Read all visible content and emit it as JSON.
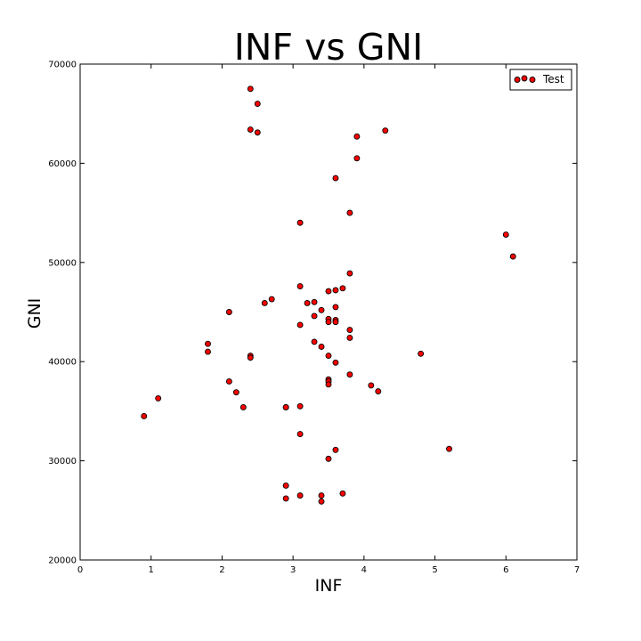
{
  "chart_data": {
    "type": "scatter",
    "title": "INF vs GNI",
    "xlabel": "INF",
    "ylabel": "GNI",
    "xlim": [
      0,
      7
    ],
    "ylim": [
      20000,
      70000
    ],
    "xticks": [
      0,
      1,
      2,
      3,
      4,
      5,
      6,
      7
    ],
    "yticks": [
      20000,
      30000,
      40000,
      50000,
      60000,
      70000
    ],
    "grid": false,
    "legend_position": "top-right",
    "series": [
      {
        "name": "Test",
        "color": "#ff0000",
        "edge_color": "#000000",
        "points": [
          [
            2.4,
            67500
          ],
          [
            2.5,
            66000
          ],
          [
            2.4,
            63400
          ],
          [
            2.5,
            63100
          ],
          [
            4.3,
            63300
          ],
          [
            3.9,
            62700
          ],
          [
            3.9,
            60500
          ],
          [
            3.6,
            58500
          ],
          [
            3.8,
            55000
          ],
          [
            3.1,
            54000
          ],
          [
            6.0,
            52800
          ],
          [
            6.1,
            50600
          ],
          [
            3.8,
            48900
          ],
          [
            3.1,
            47600
          ],
          [
            3.7,
            47400
          ],
          [
            3.6,
            47200
          ],
          [
            3.5,
            47100
          ],
          [
            2.7,
            46300
          ],
          [
            2.6,
            45900
          ],
          [
            3.2,
            45900
          ],
          [
            3.3,
            46000
          ],
          [
            3.6,
            45500
          ],
          [
            3.4,
            45200
          ],
          [
            2.1,
            45000
          ],
          [
            3.3,
            44600
          ],
          [
            3.5,
            44300
          ],
          [
            3.5,
            44000
          ],
          [
            3.6,
            44200
          ],
          [
            3.6,
            44000
          ],
          [
            3.1,
            43700
          ],
          [
            3.8,
            43200
          ],
          [
            3.8,
            42400
          ],
          [
            3.3,
            42000
          ],
          [
            1.8,
            41800
          ],
          [
            3.4,
            41500
          ],
          [
            1.8,
            41000
          ],
          [
            4.8,
            40800
          ],
          [
            3.5,
            40600
          ],
          [
            2.4,
            40600
          ],
          [
            2.4,
            40400
          ],
          [
            3.6,
            39900
          ],
          [
            3.8,
            38700
          ],
          [
            3.5,
            38200
          ],
          [
            3.5,
            38000
          ],
          [
            2.1,
            38000
          ],
          [
            3.5,
            37700
          ],
          [
            4.1,
            37600
          ],
          [
            4.2,
            37000
          ],
          [
            2.2,
            36900
          ],
          [
            1.1,
            36300
          ],
          [
            3.1,
            35500
          ],
          [
            2.9,
            35400
          ],
          [
            2.9,
            35400
          ],
          [
            2.3,
            35400
          ],
          [
            0.9,
            34500
          ],
          [
            3.1,
            32700
          ],
          [
            5.2,
            31200
          ],
          [
            3.6,
            31100
          ],
          [
            3.5,
            30200
          ],
          [
            2.9,
            27500
          ],
          [
            3.7,
            26700
          ],
          [
            3.1,
            26500
          ],
          [
            3.4,
            26500
          ],
          [
            2.9,
            26200
          ],
          [
            3.4,
            25900
          ]
        ]
      }
    ]
  }
}
